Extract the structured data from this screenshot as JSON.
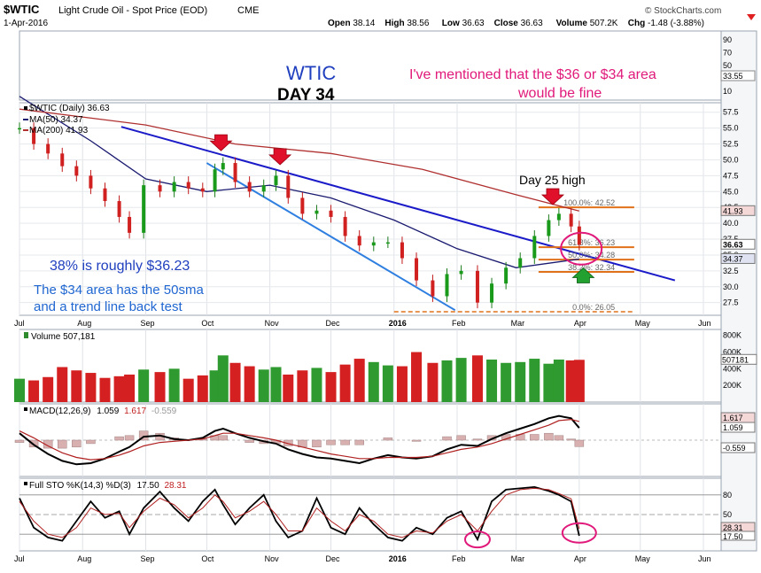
{
  "header": {
    "symbol": "$WTIC",
    "description": "Light Crude Oil - Spot Price (EOD)",
    "exchange": "CME",
    "date": "1-Apr-2016",
    "brand": "© StockCharts.com",
    "quote": [
      {
        "label": "Open",
        "value": "38.14"
      },
      {
        "label": "High",
        "value": "38.56"
      },
      {
        "label": "Low",
        "value": "36.63"
      },
      {
        "label": "Close",
        "value": "36.63"
      },
      {
        "label": "Volume",
        "value": "507.2K"
      },
      {
        "label": "Chg",
        "value": "-1.48 (-3.88%)"
      }
    ],
    "change_arrow": "down-arrow"
  },
  "annotations": {
    "title1": "WTIC",
    "title2": "DAY 34",
    "note_line1": "I've mentioned that the $36 or $34 area",
    "note_line2": "would be fine",
    "fib_note": "38% is roughly  $36.23",
    "sma_note1": "The $34 area has the 50sma",
    "sma_note2": "and a trend line back test",
    "day25": "Day 25 high",
    "color_title": "#1f3fbf",
    "color_note": "#e0197a",
    "color_blue_text": "#1f66d1"
  },
  "legends": {
    "price": "$WTIC (Daily) 36.63",
    "ma50": "MA(50) 34.37",
    "ma200": "MA(200) 41.93",
    "volume": "Volume 507,181",
    "macd": {
      "label": "MACD(12,26,9)",
      "v1": "1.059",
      "v2": "1.617",
      "v3": "-0.559"
    },
    "sto": {
      "label": "Full STO %K(14,3) %D(3)",
      "v1": "17.50",
      "v2": "28.31"
    }
  },
  "axis_labels": {
    "price_ticks": [
      "57.5",
      "55.0",
      "52.5",
      "50.0",
      "47.5",
      "45.0",
      "42.5",
      "40.0",
      "37.5",
      "35.0",
      "32.5",
      "30.0",
      "27.5"
    ],
    "top_ticks": [
      "90",
      "70",
      "50",
      "30",
      "10"
    ],
    "top_badge": "33.55",
    "price_badges": {
      "ma200": "41.93",
      "close": "36.63",
      "ma50": "34.37"
    },
    "volume_ticks": [
      "800K",
      "600K",
      "400K",
      "200K"
    ],
    "volume_badge": "507181",
    "macd_badges": [
      "1.617",
      "1.059",
      "-0.559"
    ],
    "sto_ticks": [
      "80",
      "50",
      "20"
    ],
    "sto_badges": [
      "28.31",
      "17.50"
    ],
    "months": [
      "Jul",
      "Aug",
      "Sep",
      "Oct",
      "Nov",
      "Dec",
      "2016",
      "Feb",
      "Mar",
      "Apr",
      "May",
      "Jun"
    ]
  },
  "fib_levels": [
    {
      "label": "100.0%: 42.52",
      "value": 42.52,
      "color": "#e0701a"
    },
    {
      "label": "61.8%: 36.23",
      "value": 36.23,
      "color": "#e0701a"
    },
    {
      "label": "50.0%: 34.28",
      "value": 34.28,
      "color": "#e0701a"
    },
    {
      "label": "38.2%: 32.34",
      "value": 32.34,
      "color": "#e0701a"
    },
    {
      "label": "0.0%: 26.05",
      "value": 26.05,
      "color": "#e0701a"
    }
  ],
  "chart_data": {
    "type": "candlestick",
    "series": [
      {
        "name": "$WTIC (Daily)",
        "points": [
          [
            "2015-07-01",
            55.0
          ],
          [
            "2015-07-08",
            52.5
          ],
          [
            "2015-07-15",
            51.0
          ],
          [
            "2015-07-22",
            49.0
          ],
          [
            "2015-07-29",
            47.5
          ],
          [
            "2015-08-05",
            45.5
          ],
          [
            "2015-08-12",
            43.5
          ],
          [
            "2015-08-19",
            41.0
          ],
          [
            "2015-08-24",
            38.5
          ],
          [
            "2015-08-31",
            46.0
          ],
          [
            "2015-09-08",
            45.0
          ],
          [
            "2015-09-15",
            46.5
          ],
          [
            "2015-09-22",
            45.5
          ],
          [
            "2015-09-29",
            45.0
          ],
          [
            "2015-10-05",
            48.5
          ],
          [
            "2015-10-09",
            49.5
          ],
          [
            "2015-10-15",
            46.5
          ],
          [
            "2015-10-22",
            45.0
          ],
          [
            "2015-10-29",
            46.0
          ],
          [
            "2015-11-04",
            47.5
          ],
          [
            "2015-11-10",
            44.0
          ],
          [
            "2015-11-17",
            41.5
          ],
          [
            "2015-11-24",
            42.0
          ],
          [
            "2015-12-01",
            41.0
          ],
          [
            "2015-12-08",
            38.0
          ],
          [
            "2015-12-15",
            36.5
          ],
          [
            "2015-12-22",
            37.0
          ],
          [
            "2015-12-29",
            37.0
          ],
          [
            "2016-01-05",
            34.5
          ],
          [
            "2016-01-12",
            31.0
          ],
          [
            "2016-01-20",
            28.5
          ],
          [
            "2016-01-27",
            32.0
          ],
          [
            "2016-02-03",
            32.5
          ],
          [
            "2016-02-11",
            27.5
          ],
          [
            "2016-02-18",
            30.5
          ],
          [
            "2016-02-25",
            33.0
          ],
          [
            "2016-03-03",
            34.5
          ],
          [
            "2016-03-10",
            38.0
          ],
          [
            "2016-03-17",
            40.5
          ],
          [
            "2016-03-22",
            41.5
          ],
          [
            "2016-03-28",
            39.5
          ],
          [
            "2016-04-01",
            36.63
          ]
        ]
      },
      {
        "name": "MA(50)",
        "points": [
          [
            "2015-07-01",
            60.0
          ],
          [
            "2015-08-05",
            53.0
          ],
          [
            "2015-09-01",
            47.0
          ],
          [
            "2015-10-01",
            45.0
          ],
          [
            "2015-11-01",
            46.0
          ],
          [
            "2015-12-01",
            44.0
          ],
          [
            "2016-01-01",
            40.5
          ],
          [
            "2016-02-01",
            36.0
          ],
          [
            "2016-03-01",
            33.0
          ],
          [
            "2016-04-01",
            34.37
          ]
        ]
      },
      {
        "name": "MA(200)",
        "points": [
          [
            "2015-07-01",
            58.0
          ],
          [
            "2015-09-01",
            55.5
          ],
          [
            "2015-10-15",
            52.5
          ],
          [
            "2015-12-01",
            51.0
          ],
          [
            "2016-01-15",
            48.5
          ],
          [
            "2016-03-01",
            44.5
          ],
          [
            "2016-04-01",
            41.93
          ]
        ]
      }
    ],
    "volume_k": [
      280,
      260,
      300,
      420,
      380,
      350,
      290,
      310,
      330,
      390,
      360,
      400,
      280,
      320,
      380,
      560,
      470,
      430,
      390,
      420,
      330,
      380,
      410,
      360,
      450,
      520,
      480,
      440,
      430,
      600,
      470,
      500,
      530,
      560,
      510,
      470,
      480,
      520,
      460,
      510,
      500,
      507
    ],
    "macd": {
      "line": [
        0.6,
        -0.4,
        -1.2,
        -1.8,
        -2.1,
        -2.0,
        -1.6,
        -1.0,
        -0.6,
        0.3,
        0.4,
        0.1,
        0.0,
        0.2,
        0.8,
        1.0,
        0.6,
        0.2,
        -0.1,
        -0.3,
        -0.8,
        -1.2,
        -1.5,
        -1.6,
        -1.8,
        -2.0,
        -1.6,
        -1.3,
        -1.5,
        -1.6,
        -1.4,
        -0.8,
        -0.4,
        -0.5,
        0.1,
        0.6,
        1.0,
        1.4,
        1.9,
        2.1,
        1.9,
        1.06
      ],
      "signal": [
        0.8,
        0.2,
        -0.5,
        -1.1,
        -1.5,
        -1.7,
        -1.6,
        -1.3,
        -1.0,
        -0.5,
        -0.2,
        -0.1,
        0.0,
        0.1,
        0.4,
        0.6,
        0.6,
        0.4,
        0.2,
        0.0,
        -0.3,
        -0.6,
        -0.9,
        -1.2,
        -1.4,
        -1.6,
        -1.6,
        -1.5,
        -1.5,
        -1.5,
        -1.4,
        -1.1,
        -0.8,
        -0.6,
        -0.3,
        0.1,
        0.5,
        0.9,
        1.3,
        1.7,
        1.8,
        1.62
      ]
    },
    "stochastic": {
      "k": [
        75,
        30,
        15,
        10,
        40,
        70,
        45,
        55,
        20,
        60,
        85,
        60,
        40,
        70,
        88,
        65,
        35,
        60,
        80,
        40,
        15,
        25,
        75,
        30,
        20,
        60,
        35,
        15,
        10,
        30,
        20,
        45,
        55,
        12,
        70,
        88,
        90,
        92,
        86,
        80,
        70,
        17.5
      ],
      "d": [
        70,
        40,
        20,
        15,
        30,
        60,
        50,
        52,
        30,
        55,
        75,
        65,
        45,
        60,
        80,
        70,
        45,
        55,
        70,
        50,
        25,
        25,
        60,
        40,
        25,
        50,
        40,
        20,
        15,
        25,
        22,
        40,
        50,
        25,
        55,
        80,
        88,
        90,
        88,
        82,
        74,
        28.31
      ]
    },
    "xlabel": "",
    "ylabel": "",
    "ylim": [
      25.5,
      59
    ]
  }
}
